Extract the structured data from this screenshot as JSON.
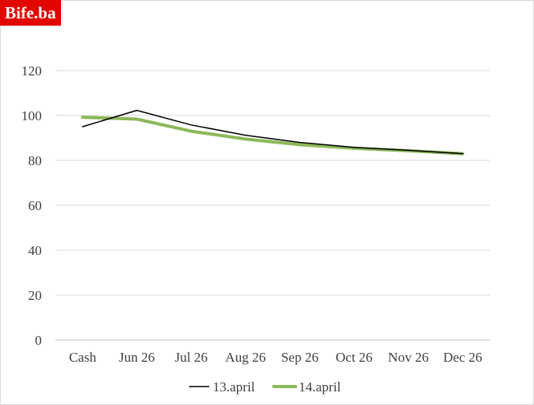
{
  "brand": {
    "logo_text": "Bife.ba",
    "color": "#e10600"
  },
  "chart_data": {
    "type": "line",
    "categories": [
      "Cash",
      "Jun 26",
      "Jul 26",
      "Aug 26",
      "Sep 26",
      "Oct 26",
      "Nov 26",
      "Dec 26"
    ],
    "series": [
      {
        "name": "13.april",
        "color": "#000000",
        "values": [
          95.0,
          102.3,
          95.8,
          91.2,
          88.0,
          85.8,
          84.5,
          83.0
        ]
      },
      {
        "name": "14.april",
        "color": "#8db85a",
        "values": [
          99.2,
          98.4,
          93.0,
          89.5,
          87.0,
          85.4,
          84.3,
          83.0
        ]
      }
    ],
    "title": "",
    "xlabel": "",
    "ylabel": "",
    "ylim": [
      0,
      120
    ],
    "yticks": [
      0,
      20,
      40,
      60,
      80,
      100,
      120
    ],
    "grid": true,
    "legend_position": "bottom"
  }
}
